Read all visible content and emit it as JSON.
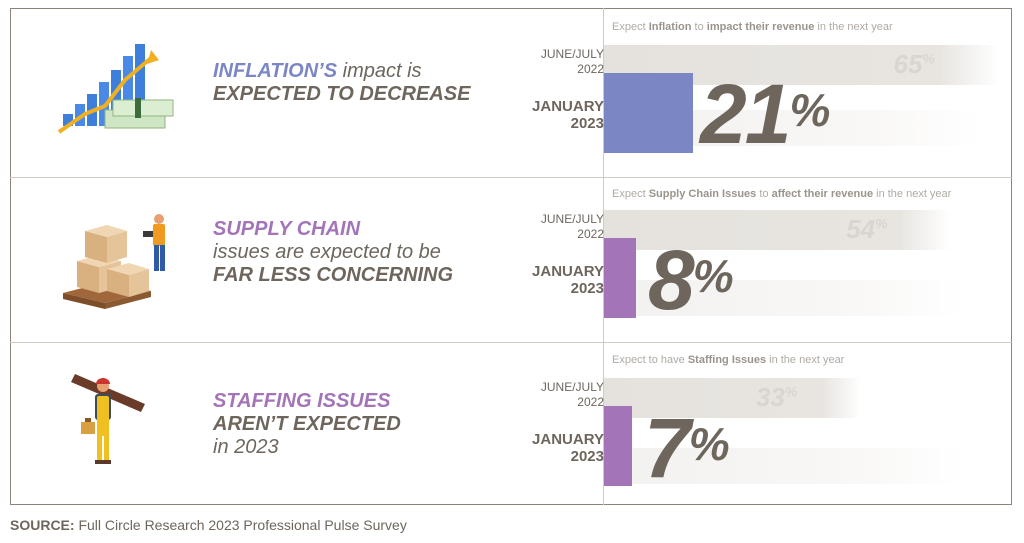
{
  "colors": {
    "blue": "#7b87c4",
    "purple": "#a474b8",
    "text": "#6e665d",
    "bar_prev": "#e5e2de",
    "pct_prev": "#d9d5d0"
  },
  "labels": {
    "prev_line1": "JUNE/JULY",
    "prev_line2": "2022",
    "curr_line1": "JANUARY",
    "curr_line2": "2023"
  },
  "panels": [
    {
      "headline": {
        "accent": "INFLATION’S",
        "rest1": " impact is",
        "line2": "EXPECTED TO DECREASE"
      },
      "subtitle": {
        "pre": "Expect ",
        "b1": "Inflation",
        "mid": " to ",
        "b2": "impact their revenue",
        "post": " in the next year"
      },
      "prev_value": "65",
      "curr_value": "21"
    },
    {
      "headline": {
        "accent": "SUPPLY CHAIN",
        "line2": "issues are expected to be",
        "line3": "FAR LESS CONCERNING"
      },
      "subtitle": {
        "pre": "Expect ",
        "b1": "Supply Chain Issues",
        "mid": " to ",
        "b2": "affect their revenue",
        "post": " in the next year"
      },
      "prev_value": "54",
      "curr_value": "8"
    },
    {
      "headline": {
        "accent": "STAFFING ISSUES",
        "line2": "AREN’T EXPECTED",
        "line3": "in 2023"
      },
      "subtitle": {
        "pre": "Expect to have ",
        "b1": "Staffing Issues",
        "post": " in the next year"
      },
      "prev_value": "33",
      "curr_value": "7"
    }
  ],
  "chart_data": {
    "type": "bar",
    "categories": [
      "JUNE/JULY 2022",
      "JANUARY 2023"
    ],
    "series": [
      {
        "name": "Expect Inflation to impact their revenue in the next year",
        "values": [
          65,
          21
        ]
      },
      {
        "name": "Expect Supply Chain Issues to affect their revenue in the next year",
        "values": [
          54,
          8
        ]
      },
      {
        "name": "Expect to have Staffing Issues in the next year",
        "values": [
          33,
          7
        ]
      }
    ],
    "unit": "%",
    "ylim": [
      0,
      100
    ]
  },
  "pct_sign": "%",
  "source": {
    "label": "SOURCE:",
    "text": " Full Circle Research 2023 Professional Pulse Survey"
  }
}
